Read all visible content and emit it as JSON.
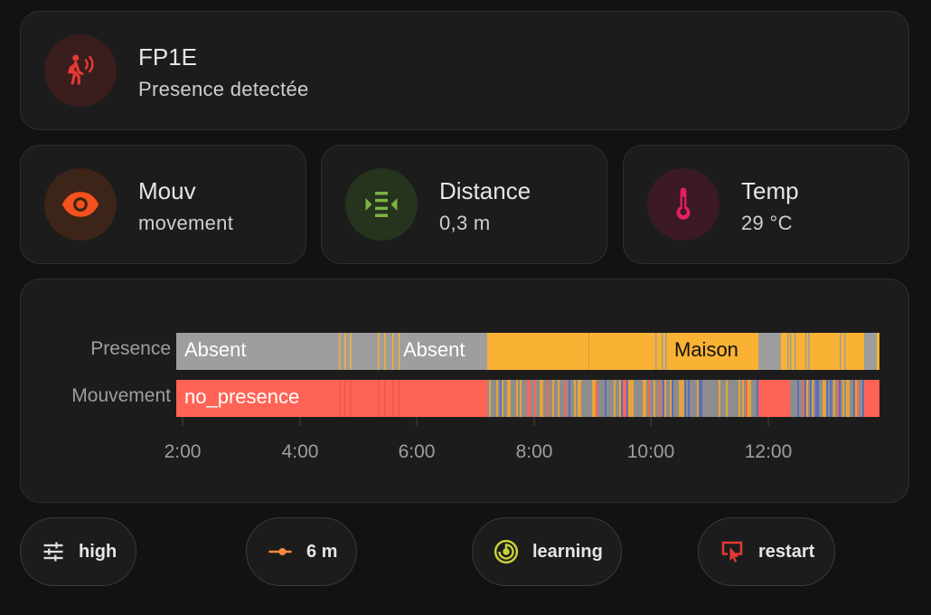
{
  "header": {
    "name": "FP1E",
    "state": "Presence detectée",
    "icon": "motion-sensor-icon",
    "icon_color": "#e53935",
    "icon_bg": "#3a1d1d"
  },
  "tiles": [
    {
      "name": "Mouv",
      "state": "movement",
      "icon": "eye-icon",
      "icon_color": "#f4511e",
      "icon_bg": "#3d2418"
    },
    {
      "name": "Distance",
      "state": "0,3 m",
      "icon": "distance-arrows-icon",
      "icon_color": "#7cb342",
      "icon_bg": "#26331d"
    },
    {
      "name": "Temp",
      "state": "29 °C",
      "icon": "thermometer-icon",
      "icon_color": "#e91e63",
      "icon_bg": "#3b1a25"
    }
  ],
  "history": {
    "rows": [
      {
        "label": "Presence",
        "texts": [
          "Absent",
          "Absent",
          "Maison"
        ]
      },
      {
        "label": "Mouvement",
        "texts": [
          "no_presence"
        ]
      }
    ],
    "ticks": [
      "2:00",
      "4:00",
      "6:00",
      "8:00",
      "10:00",
      "12:00"
    ],
    "colors": {
      "absent": "#9e9e9e",
      "maison": "#f9b233",
      "no_presence": "#ff6355",
      "movement_a": "#8d8d8d",
      "movement_b": "#e5a43c",
      "movement_c": "#5a6fb8"
    }
  },
  "chips": [
    {
      "label": "high",
      "icon": "sliders-icon",
      "icon_color": "#dddddd"
    },
    {
      "label": "6 m",
      "icon": "range-slider-icon",
      "icon_color": "#ff8a3d"
    },
    {
      "label": "learning",
      "icon": "radar-icon",
      "icon_color": "#c6d03a"
    },
    {
      "label": "restart",
      "icon": "restart-icon",
      "icon_color": "#e53935"
    }
  ]
}
